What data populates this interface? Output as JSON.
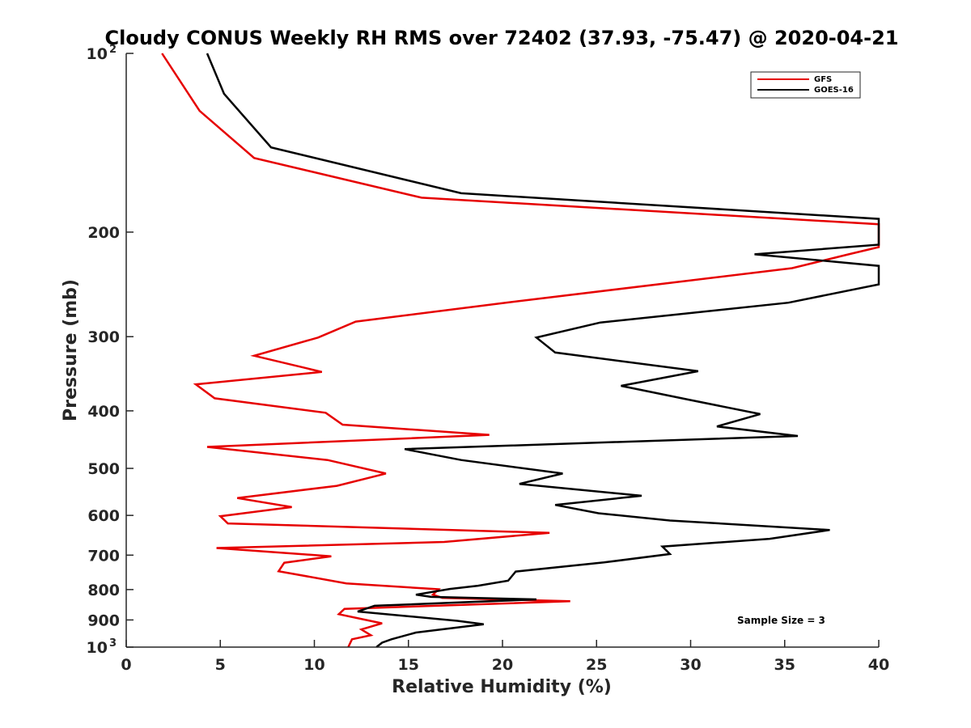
{
  "chart_data": {
    "type": "line",
    "title": "Cloudy CONUS Weekly RH RMS over 72402 (37.93, -75.47) @ 2020-04-21",
    "xlabel": "Relative Humidity (%)",
    "ylabel": "Pressure (mb)",
    "xlim": [
      0,
      40
    ],
    "ylim": [
      100,
      1000
    ],
    "y_scale": "log",
    "y_reversed": true,
    "x_ticks": [
      "0",
      "5",
      "10",
      "15",
      "20",
      "25",
      "30",
      "35",
      "40"
    ],
    "y_ticks": [
      {
        "value": 100,
        "label": "10",
        "sup": "2"
      },
      {
        "value": 200,
        "label": "200",
        "sup": ""
      },
      {
        "value": 300,
        "label": "300",
        "sup": ""
      },
      {
        "value": 400,
        "label": "400",
        "sup": ""
      },
      {
        "value": 500,
        "label": "500",
        "sup": ""
      },
      {
        "value": 600,
        "label": "600",
        "sup": ""
      },
      {
        "value": 700,
        "label": "700",
        "sup": ""
      },
      {
        "value": 800,
        "label": "800",
        "sup": ""
      },
      {
        "value": 900,
        "label": "900",
        "sup": ""
      },
      {
        "value": 1000,
        "label": "10",
        "sup": "3"
      }
    ],
    "grid": false,
    "legend_position": "top-right",
    "annotation": "Sample Size = 3",
    "series": [
      {
        "name": "GFS",
        "color": "#e60000",
        "points": [
          [
            1.9,
            100
          ],
          [
            3.9,
            125
          ],
          [
            6.8,
            150
          ],
          [
            15.7,
            175
          ],
          [
            40.0,
            194
          ],
          [
            40.0,
            212
          ],
          [
            38.4,
            218
          ],
          [
            35.4,
            230
          ],
          [
            20.6,
            262
          ],
          [
            12.2,
            283
          ],
          [
            10.2,
            301
          ],
          [
            6.8,
            323
          ],
          [
            10.4,
            344
          ],
          [
            3.7,
            361
          ],
          [
            4.7,
            381
          ],
          [
            10.6,
            403
          ],
          [
            11.5,
            422
          ],
          [
            19.3,
            439
          ],
          [
            4.3,
            460
          ],
          [
            10.7,
            484
          ],
          [
            13.8,
            510
          ],
          [
            11.2,
            535
          ],
          [
            5.9,
            561
          ],
          [
            8.8,
            581
          ],
          [
            5.0,
            602
          ],
          [
            5.4,
            619
          ],
          [
            22.5,
            642
          ],
          [
            16.9,
            665
          ],
          [
            4.8,
            681
          ],
          [
            10.9,
            703
          ],
          [
            8.4,
            721
          ],
          [
            8.1,
            745
          ],
          [
            11.7,
            781
          ],
          [
            16.6,
            799
          ],
          [
            16.3,
            816
          ],
          [
            16.8,
            826
          ],
          [
            23.6,
            837
          ],
          [
            11.6,
            862
          ],
          [
            11.3,
            880
          ],
          [
            13.6,
            912
          ],
          [
            12.5,
            934
          ],
          [
            13.0,
            955
          ],
          [
            12.0,
            970
          ],
          [
            11.8,
            1000
          ]
        ]
      },
      {
        "name": "GOES-16",
        "color": "#000000",
        "points": [
          [
            4.3,
            100
          ],
          [
            5.2,
            117
          ],
          [
            7.7,
            144
          ],
          [
            17.8,
            172
          ],
          [
            40.0,
            190
          ],
          [
            40.0,
            210
          ],
          [
            33.4,
            218
          ],
          [
            40.0,
            228
          ],
          [
            40.0,
            245
          ],
          [
            35.2,
            263
          ],
          [
            25.2,
            284
          ],
          [
            21.8,
            301
          ],
          [
            22.8,
            319
          ],
          [
            30.4,
            343
          ],
          [
            26.3,
            363
          ],
          [
            29.9,
            383
          ],
          [
            33.7,
            405
          ],
          [
            31.4,
            425
          ],
          [
            35.7,
            441
          ],
          [
            14.8,
            464
          ],
          [
            17.8,
            484
          ],
          [
            23.2,
            510
          ],
          [
            20.9,
            531
          ],
          [
            27.4,
            556
          ],
          [
            22.8,
            576
          ],
          [
            25.1,
            595
          ],
          [
            28.9,
            612
          ],
          [
            37.4,
            635
          ],
          [
            34.2,
            657
          ],
          [
            28.5,
            677
          ],
          [
            28.9,
            697
          ],
          [
            25.4,
            720
          ],
          [
            20.7,
            746
          ],
          [
            20.3,
            773
          ],
          [
            18.7,
            788
          ],
          [
            17.2,
            798
          ],
          [
            15.4,
            816
          ],
          [
            16.2,
            823
          ],
          [
            21.8,
            831
          ],
          [
            13.2,
            852
          ],
          [
            12.3,
            871
          ],
          [
            17.6,
            903
          ],
          [
            19.0,
            915
          ],
          [
            15.4,
            945
          ],
          [
            14.1,
            970
          ],
          [
            13.6,
            983
          ],
          [
            13.3,
            1000
          ]
        ]
      }
    ]
  }
}
